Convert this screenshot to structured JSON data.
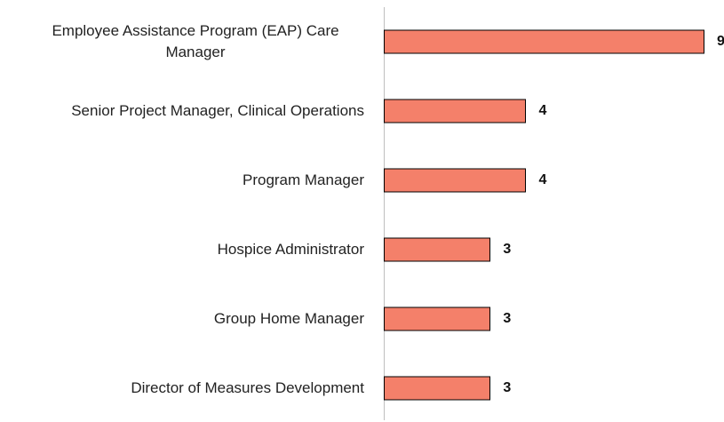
{
  "chart_data": {
    "type": "bar",
    "orientation": "horizontal",
    "categories": [
      "Employee Assistance Program (EAP) Care Manager",
      "Senior Project Manager, Clinical Operations",
      "Program Manager",
      "Hospice Administrator",
      "Group Home Manager",
      "Director of Measures Development"
    ],
    "values": [
      9,
      4,
      4,
      3,
      3,
      3
    ],
    "color": "#f4806a",
    "xlim": [
      0,
      9
    ]
  }
}
